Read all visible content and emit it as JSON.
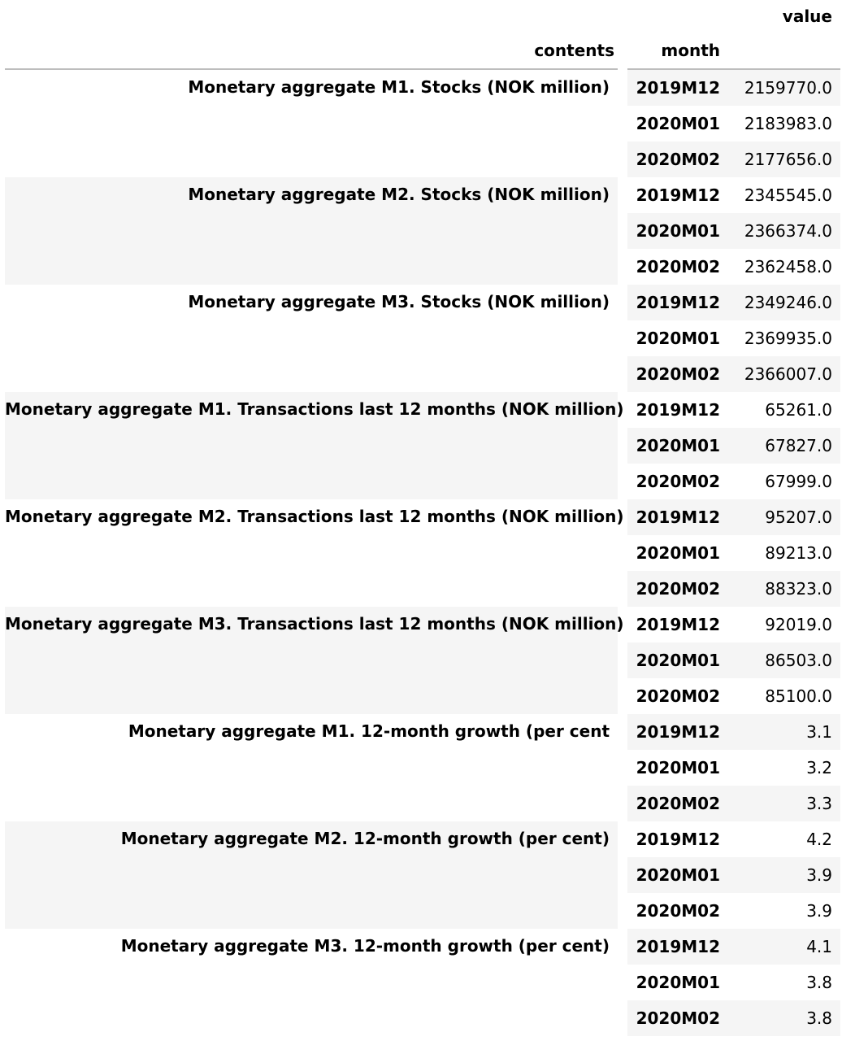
{
  "header": {
    "value_label": "value",
    "contents_label": "contents",
    "month_label": "month"
  },
  "groups": [
    {
      "contents": "Monetary aggregate M1. Stocks (NOK million)",
      "rows": [
        {
          "month": "2019M12",
          "value": "2159770.0"
        },
        {
          "month": "2020M01",
          "value": "2183983.0"
        },
        {
          "month": "2020M02",
          "value": "2177656.0"
        }
      ]
    },
    {
      "contents": "Monetary aggregate M2. Stocks (NOK million)",
      "rows": [
        {
          "month": "2019M12",
          "value": "2345545.0"
        },
        {
          "month": "2020M01",
          "value": "2366374.0"
        },
        {
          "month": "2020M02",
          "value": "2362458.0"
        }
      ]
    },
    {
      "contents": "Monetary aggregate M3. Stocks (NOK million)",
      "rows": [
        {
          "month": "2019M12",
          "value": "2349246.0"
        },
        {
          "month": "2020M01",
          "value": "2369935.0"
        },
        {
          "month": "2020M02",
          "value": "2366007.0"
        }
      ]
    },
    {
      "contents": "Monetary aggregate M1. Transactions last 12 months (NOK million)",
      "rows": [
        {
          "month": "2019M12",
          "value": "65261.0"
        },
        {
          "month": "2020M01",
          "value": "67827.0"
        },
        {
          "month": "2020M02",
          "value": "67999.0"
        }
      ]
    },
    {
      "contents": "Monetary aggregate M2. Transactions last 12 months (NOK million)",
      "rows": [
        {
          "month": "2019M12",
          "value": "95207.0"
        },
        {
          "month": "2020M01",
          "value": "89213.0"
        },
        {
          "month": "2020M02",
          "value": "88323.0"
        }
      ]
    },
    {
      "contents": "Monetary aggregate M3. Transactions last 12 months (NOK million)",
      "rows": [
        {
          "month": "2019M12",
          "value": "92019.0"
        },
        {
          "month": "2020M01",
          "value": "86503.0"
        },
        {
          "month": "2020M02",
          "value": "85100.0"
        }
      ]
    },
    {
      "contents": "Monetary aggregate M1. 12-month growth (per cent",
      "rows": [
        {
          "month": "2019M12",
          "value": "3.1"
        },
        {
          "month": "2020M01",
          "value": "3.2"
        },
        {
          "month": "2020M02",
          "value": "3.3"
        }
      ]
    },
    {
      "contents": "Monetary aggregate M2. 12-month growth (per cent)",
      "rows": [
        {
          "month": "2019M12",
          "value": "4.2"
        },
        {
          "month": "2020M01",
          "value": "3.9"
        },
        {
          "month": "2020M02",
          "value": "3.9"
        }
      ]
    },
    {
      "contents": "Monetary aggregate M3. 12-month growth (per cent)",
      "rows": [
        {
          "month": "2019M12",
          "value": "4.1"
        },
        {
          "month": "2020M01",
          "value": "3.8"
        },
        {
          "month": "2020M02",
          "value": "3.8"
        }
      ]
    }
  ]
}
